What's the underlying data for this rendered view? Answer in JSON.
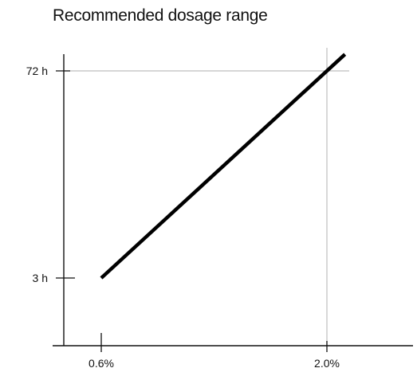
{
  "chart_data": {
    "type": "line",
    "title": "Recommended dosage range",
    "xlabel": "",
    "ylabel": "",
    "x_tick_labels": [
      "0.6%",
      "2.0%"
    ],
    "y_tick_labels": [
      "3 h",
      "72 h"
    ],
    "x_ticks": [
      0.6,
      2.0
    ],
    "y_ticks": [
      3,
      72
    ],
    "grid": true,
    "series": [
      {
        "x": [
          0.6,
          2.0
        ],
        "y": [
          3,
          72
        ]
      }
    ]
  }
}
